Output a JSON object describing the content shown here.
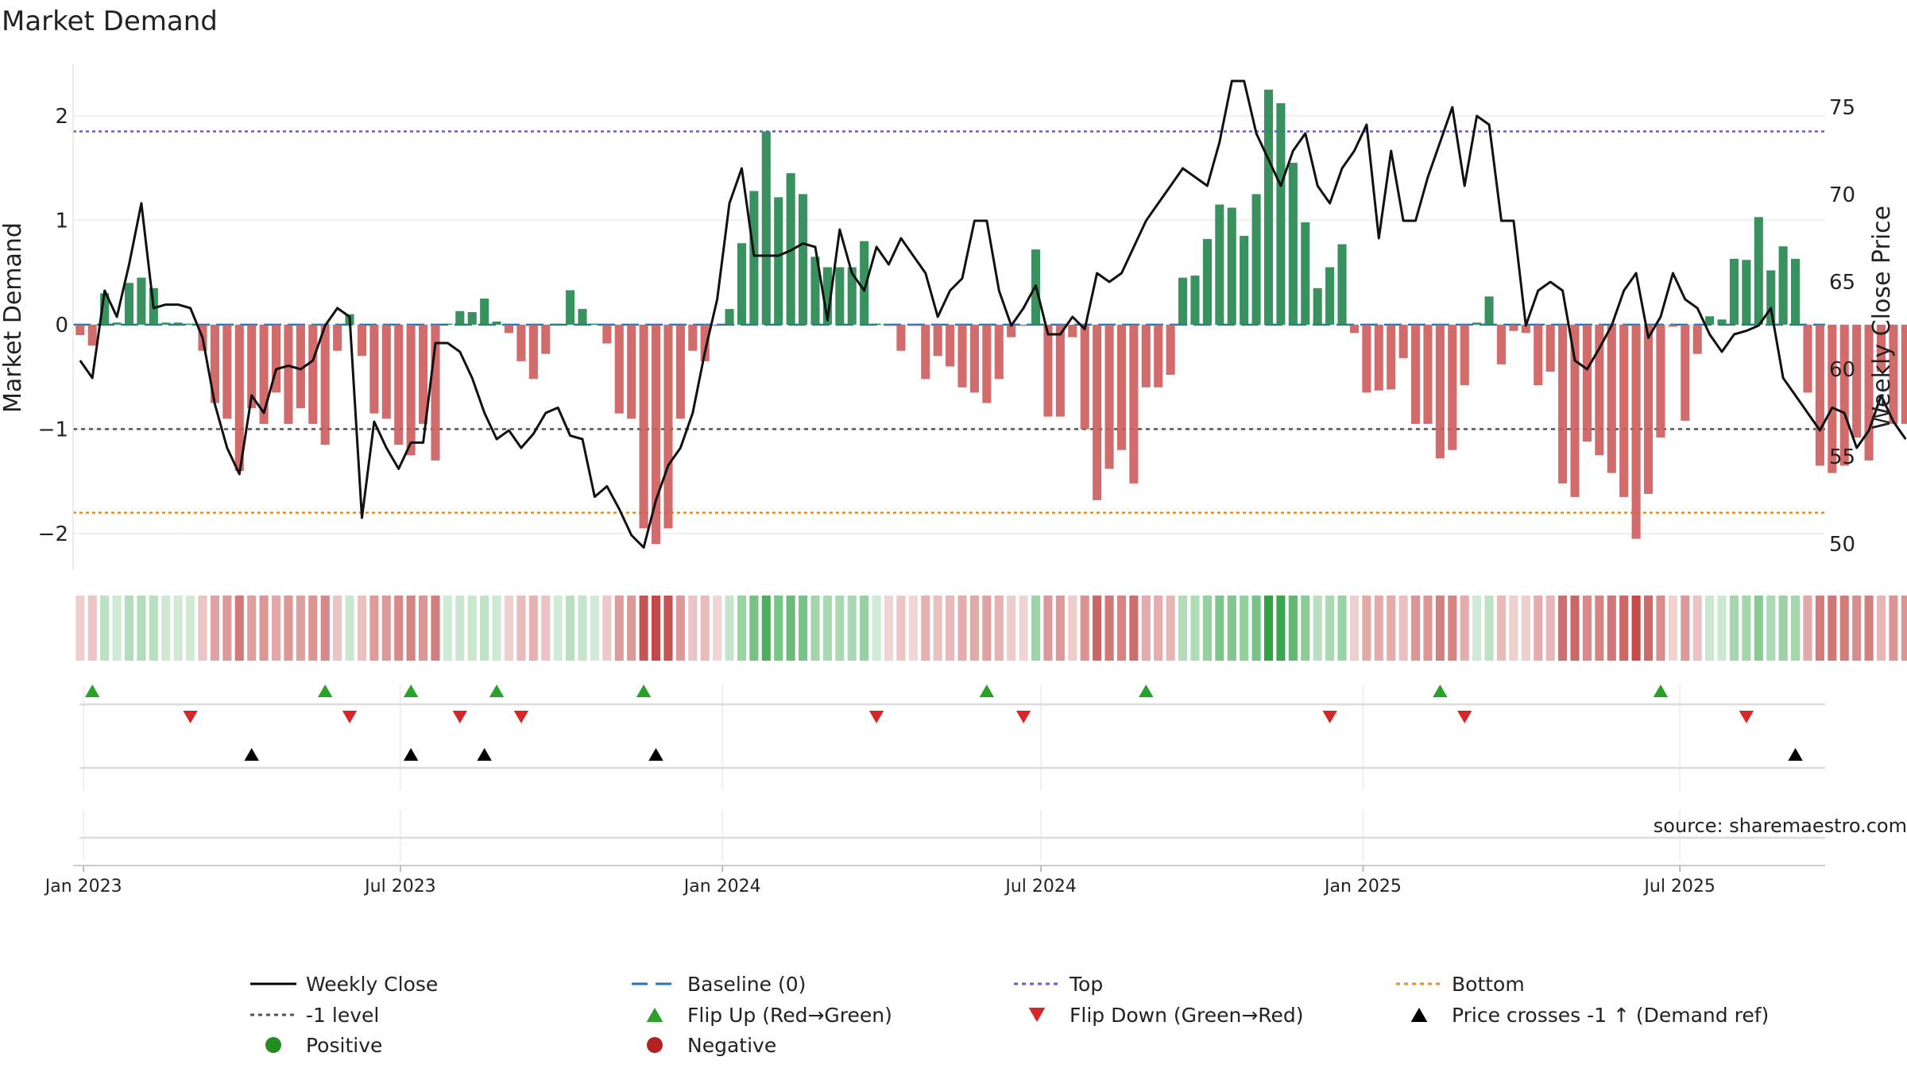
{
  "chart_data": {
    "type": "bar",
    "title": "Market Demand",
    "ylabel": "Market Demand",
    "y2label": "Weekly Close Price",
    "ylim": [
      -2.35,
      2.5
    ],
    "y2lim": [
      48.5,
      77.5
    ],
    "yticks": [
      -2,
      -1,
      0,
      1,
      2
    ],
    "y2ticks": [
      50,
      55,
      60,
      65,
      70,
      75
    ],
    "x_start": "2022-12-26",
    "x_end": "2025-09-22",
    "xticks": [
      {
        "label": "Jan 2023",
        "date": "2023-01-01"
      },
      {
        "label": "Jul 2023",
        "date": "2023-07-01"
      },
      {
        "label": "Jan 2024",
        "date": "2024-01-01"
      },
      {
        "label": "Jul 2024",
        "date": "2024-07-01"
      },
      {
        "label": "Jan 2025",
        "date": "2025-01-01"
      },
      {
        "label": "Jul 2025",
        "date": "2025-07-01"
      }
    ],
    "reference_lines": {
      "top": 1.85,
      "bottom": -1.8,
      "minus_one": -1.0,
      "baseline": 0
    },
    "series": [
      {
        "name": "Market Demand",
        "start": "2022-12-30",
        "step_days": 7,
        "values": [
          -0.1,
          -0.2,
          0.3,
          0.02,
          0.4,
          0.45,
          0.35,
          0.02,
          0.02,
          0.01,
          -0.25,
          -0.75,
          -0.9,
          -1.4,
          -0.8,
          -0.95,
          -0.65,
          -0.95,
          -0.8,
          -0.95,
          -1.15,
          -0.25,
          0.1,
          -0.3,
          -0.85,
          -0.9,
          -1.15,
          -1.25,
          -0.95,
          -1.3,
          0.01,
          0.13,
          0.12,
          0.25,
          0.03,
          -0.08,
          -0.35,
          -0.52,
          -0.28,
          0.01,
          0.33,
          0.15,
          0.01,
          -0.18,
          -0.85,
          -0.9,
          -1.95,
          -2.1,
          -1.95,
          -0.9,
          -0.25,
          -0.35,
          -0.01,
          0.15,
          0.78,
          1.28,
          1.85,
          1.22,
          1.45,
          1.25,
          0.65,
          0.55,
          0.55,
          0.55,
          0.8,
          0.01,
          -0.01,
          -0.25,
          -0.01,
          -0.52,
          -0.3,
          -0.4,
          -0.6,
          -0.65,
          -0.75,
          -0.52,
          -0.12,
          -0.01,
          0.72,
          -0.88,
          -0.88,
          -0.12,
          -1.0,
          -1.68,
          -1.38,
          -1.2,
          -1.52,
          -0.6,
          -0.6,
          -0.48,
          0.45,
          0.47,
          0.82,
          1.15,
          1.12,
          0.85,
          1.25,
          2.25,
          2.12,
          1.55,
          0.98,
          0.35,
          0.55,
          0.77,
          -0.08,
          -0.65,
          -0.63,
          -0.62,
          -0.32,
          -0.95,
          -0.95,
          -1.28,
          -1.2,
          -0.58,
          0.02,
          0.27,
          -0.38,
          -0.06,
          -0.08,
          -0.58,
          -0.45,
          -1.52,
          -1.65,
          -1.12,
          -1.25,
          -1.42,
          -1.65,
          -2.05,
          -1.62,
          -1.08,
          -0.02,
          -0.92,
          -0.28,
          0.08,
          0.05,
          0.63,
          0.62,
          1.03,
          0.52,
          0.75,
          0.63,
          -0.65,
          -1.35,
          -1.42,
          -1.35,
          -1.08,
          -1.3,
          -0.45,
          -0.95,
          -0.95
        ]
      },
      {
        "name": "Weekly Close",
        "start": "2022-12-30",
        "step_days": 7,
        "values": [
          60.5,
          59.5,
          64.5,
          63,
          66,
          69.5,
          63.5,
          63.7,
          63.7,
          63.5,
          61.8,
          58,
          55.5,
          54,
          58.5,
          57.5,
          60,
          60.2,
          60,
          60.5,
          62.5,
          63.5,
          63,
          51.5,
          57,
          55.5,
          54.3,
          55.8,
          55.8,
          61.5,
          61.5,
          61,
          59.5,
          57.5,
          56,
          56.5,
          55.5,
          56.3,
          57.5,
          57.8,
          56.2,
          56,
          52.7,
          53.3,
          52,
          50.5,
          49.8,
          52.5,
          54.5,
          55.5,
          57.5,
          61,
          64,
          69.5,
          71.5,
          66.5,
          66.5,
          66.5,
          66.8,
          67.2,
          67,
          62.8,
          68,
          65.5,
          64.5,
          67,
          66,
          67.5,
          66.5,
          65.5,
          63,
          64.5,
          65.2,
          68.5,
          68.5,
          64.5,
          62.5,
          63.5,
          64.8,
          62,
          62,
          63,
          62.3,
          65.5,
          65,
          65.5,
          67,
          68.5,
          69.5,
          70.5,
          71.5,
          71,
          70.5,
          73,
          76.5,
          76.5,
          73.5,
          72,
          70.5,
          72.5,
          73.5,
          70.5,
          69.5,
          71.5,
          72.5,
          74,
          67.5,
          72.5,
          68.5,
          68.5,
          71,
          73,
          75,
          70.5,
          74.5,
          74,
          68.5,
          68.5,
          62.5,
          64.5,
          65,
          64.5,
          60.5,
          60,
          61.2,
          62.5,
          64.5,
          65.5,
          61.8,
          63,
          65.5,
          64,
          63.5,
          62,
          61,
          62,
          62.2,
          62.5,
          63.5,
          59.5,
          58.5,
          57.5,
          56.5,
          57.8,
          57.5,
          55.5,
          56.5,
          58.5,
          57,
          56
        ]
      },
      {
        "name": "Positive / Negative strip",
        "note": "background strip shaded by Market Demand sign and magnitude"
      }
    ],
    "events": {
      "flip_up": [
        "2023-01-06",
        "2023-05-19",
        "2023-07-07",
        "2023-08-25",
        "2023-11-17",
        "2024-05-31",
        "2024-08-30",
        "2025-02-14",
        "2025-06-20"
      ],
      "flip_down": [
        "2023-03-03",
        "2023-06-02",
        "2023-08-04",
        "2023-09-08",
        "2024-03-29",
        "2024-06-21",
        "2024-12-13",
        "2025-02-28",
        "2025-08-08"
      ],
      "price_crosses": [
        "2023-04-07",
        "2023-07-07",
        "2023-08-18",
        "2023-11-24",
        "2025-09-05"
      ]
    },
    "legend": {
      "placement": "bottom",
      "items": [
        {
          "label": "Weekly Close",
          "kind": "solid-line",
          "color": "#000000"
        },
        {
          "label": "Baseline (0)",
          "kind": "dashed-line",
          "color": "#1f77b4"
        },
        {
          "label": "Top",
          "kind": "dotted-line",
          "color": "#6a5acd"
        },
        {
          "label": "Bottom",
          "kind": "dotted-line",
          "color": "#f08c1e"
        },
        {
          "label": "-1 level",
          "kind": "dotted-line",
          "color": "#555555"
        },
        {
          "label": "Flip Up (Red→Green)",
          "kind": "triangle-up",
          "color": "#2ca02c"
        },
        {
          "label": "Flip Down (Green→Red)",
          "kind": "triangle-down",
          "color": "#d62728"
        },
        {
          "label": "Price crosses -1 ↑ (Demand ref)",
          "kind": "triangle-up",
          "color": "#000000"
        },
        {
          "label": "Positive",
          "kind": "dot",
          "color": "#228b22"
        },
        {
          "label": "Negative",
          "kind": "dot",
          "color": "#b22222"
        }
      ]
    },
    "source": "source: sharemaestro.com"
  },
  "colors": {
    "positive_bar": "#2e8b57",
    "negative_bar": "#cd5c5c",
    "price_line": "#111111",
    "top_line": "#6a5acd",
    "bottom_line": "#f08c1e",
    "minus_one_line": "#555555",
    "baseline": "#1f77b4",
    "flip_up": "#2ca02c",
    "flip_down": "#d62728",
    "cross": "#000000"
  }
}
